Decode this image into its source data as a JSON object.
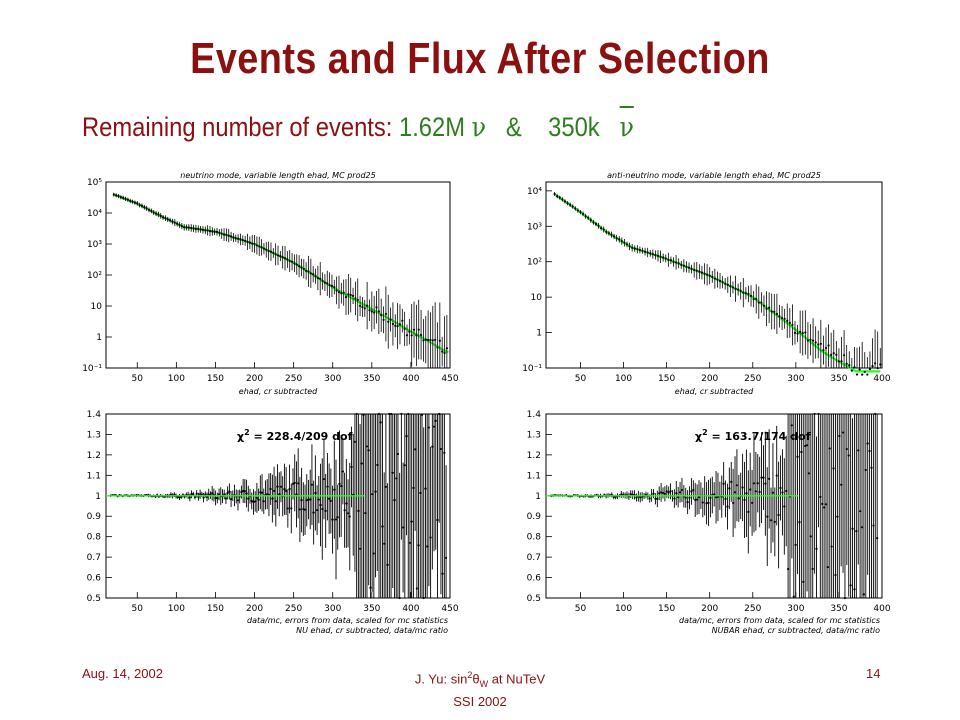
{
  "slide": {
    "title": "Events and Flux After Selection",
    "subtitle_prefix": "Remaining number of events: ",
    "nu_count": "1.62M",
    "nu_symbol": "ν",
    "and_symbol": "&",
    "nubar_count": "350k",
    "nubar_symbol": "ν"
  },
  "footer": {
    "date": "Aug. 14, 2002",
    "center_prefix": "J. Yu: sin",
    "center_sup": "2",
    "center_theta": "θ",
    "center_sub": "W",
    "center_suffix": " at NuTeV",
    "center_line2": "SSI 2002",
    "page": "14"
  },
  "colors": {
    "title": "#8B1010",
    "accent_green": "#2E7D1E",
    "mc_curve": "#22ff22",
    "data_points": "#000000"
  },
  "chart_data": [
    {
      "type": "line",
      "title": "neutrino mode, variable length ehad, MC prod25",
      "xlabel": "ehad, cr subtracted",
      "xlim": [
        10,
        450
      ],
      "xticks": [
        "50",
        "100",
        "150",
        "200",
        "250",
        "300",
        "350",
        "400",
        "450"
      ],
      "yscale": "log",
      "yticklabels": [
        "10⁻¹",
        "1",
        "10",
        "10²",
        "10³",
        "10⁴",
        "10⁵"
      ],
      "series": [
        {
          "style": "data",
          "x": [
            20,
            50,
            80,
            110,
            150,
            200,
            250,
            300,
            330,
            350,
            380,
            400,
            420,
            440,
            450
          ],
          "y": [
            40000,
            20000,
            8000,
            3500,
            2500,
            1000,
            250,
            40,
            15,
            8,
            3,
            1.5,
            0.8,
            0.4,
            0.3
          ]
        },
        {
          "style": "mc",
          "x": [
            20,
            50,
            80,
            110,
            150,
            200,
            250,
            300,
            330,
            350,
            380,
            400,
            420,
            440,
            450
          ],
          "y": [
            40000,
            20000,
            8000,
            3500,
            2500,
            1000,
            250,
            40,
            15,
            8,
            3,
            1.5,
            0.8,
            0.4,
            0.3
          ]
        }
      ]
    },
    {
      "type": "line",
      "title": "anti-neutrino mode, variable length ehad, MC prod25",
      "xlabel": "ehad, cr subtracted",
      "xlim": [
        10,
        400
      ],
      "xticks": [
        "50",
        "100",
        "150",
        "200",
        "250",
        "300",
        "350",
        "400"
      ],
      "yscale": "log",
      "yticklabels": [
        "10⁻¹",
        "1",
        "10",
        "10²",
        "10³",
        "10⁴"
      ],
      "series": [
        {
          "style": "data",
          "x": [
            20,
            50,
            80,
            110,
            150,
            200,
            250,
            300,
            330,
            350,
            370
          ],
          "y": [
            8000,
            2500,
            700,
            250,
            120,
            40,
            10,
            1.2,
            0.4,
            0.2,
            0.1
          ]
        },
        {
          "style": "mc",
          "x": [
            20,
            50,
            80,
            110,
            150,
            200,
            250,
            300,
            330,
            350,
            370
          ],
          "y": [
            8000,
            2500,
            700,
            250,
            120,
            40,
            10,
            1.2,
            0.3,
            0.15,
            0.08
          ]
        }
      ]
    },
    {
      "type": "scatter",
      "title": "",
      "xlabel": "data/mc, errors from data, scaled for mc statistics",
      "caption": "NU ehad, cr subtracted, data/mc ratio",
      "annotation_chi": "χ",
      "annotation_value": "= 228.4/209 dof",
      "xlim": [
        10,
        450
      ],
      "ylim": [
        0.5,
        1.4
      ],
      "xticks": [
        "50",
        "100",
        "150",
        "200",
        "250",
        "300",
        "350",
        "400",
        "450"
      ],
      "yticks": [
        "0.5",
        "0.6",
        "0.7",
        "0.8",
        "0.9",
        "1",
        "1.1",
        "1.2",
        "1.3",
        "1.4"
      ],
      "reference_line": 1
    },
    {
      "type": "scatter",
      "title": "",
      "xlabel": "data/mc, errors from data, scaled for mc statistics",
      "caption": "NUBAR ehad, cr subtracted, data/mc ratio",
      "annotation_chi": "χ",
      "annotation_value": "= 163.7/174 dof",
      "xlim": [
        10,
        400
      ],
      "ylim": [
        0.5,
        1.4
      ],
      "xticks": [
        "50",
        "100",
        "150",
        "200",
        "250",
        "300",
        "350",
        "400"
      ],
      "yticks": [
        "0.5",
        "0.6",
        "0.7",
        "0.8",
        "0.9",
        "1",
        "1.1",
        "1.2",
        "1.3",
        "1.4"
      ],
      "reference_line": 1
    }
  ]
}
